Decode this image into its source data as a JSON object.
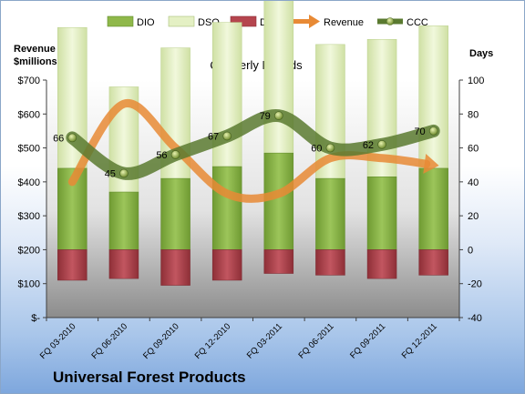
{
  "company_name": "Universal Forest Products",
  "chart_data": {
    "type": "bar",
    "title": "Quarterly Periods",
    "left_axis_label": "Revenue $millions",
    "right_axis_label": "Days",
    "categories": [
      "FQ 03-2010",
      "FQ 06-2010",
      "FQ 09-2010",
      "FQ 12-2010",
      "FQ 03-2011",
      "FQ 06-2011",
      "FQ 09-2011",
      "FQ 12-2011"
    ],
    "left_axis": {
      "min": 0,
      "max": 700,
      "step": 100,
      "tick_labels": [
        "$-",
        "$100",
        "$200",
        "$300",
        "$400",
        "$500",
        "$600",
        "$700"
      ]
    },
    "right_axis": {
      "min": -40,
      "max": 100,
      "step": 20,
      "tick_labels": [
        "-40",
        "-20",
        "0",
        "20",
        "40",
        "60",
        "80",
        "100"
      ]
    },
    "legend_position": "top",
    "series": [
      {
        "name": "DIO",
        "axis": "right",
        "kind": "stacked-bar",
        "color": "#8fb84a",
        "values": [
          48,
          34,
          42,
          49,
          57,
          42,
          43,
          48
        ]
      },
      {
        "name": "DSO",
        "axis": "right",
        "kind": "stacked-bar",
        "color": "#e4f0c4",
        "values": [
          83,
          62,
          77,
          85,
          93,
          79,
          81,
          84
        ]
      },
      {
        "name": "DPO",
        "axis": "right",
        "kind": "negative-bar",
        "color": "#b5454e",
        "values": [
          -18,
          -17,
          -21,
          -18,
          -14,
          -15,
          -17,
          -15
        ]
      },
      {
        "name": "Revenue",
        "axis": "left",
        "kind": "line",
        "color": "#e88a35",
        "values": [
          400,
          630,
          500,
          365,
          365,
          470,
          470,
          450
        ]
      },
      {
        "name": "CCC",
        "axis": "right",
        "kind": "line",
        "color": "#5a7a30",
        "values": [
          66,
          45,
          56,
          67,
          79,
          60,
          62,
          70
        ],
        "data_labels": [
          "66",
          "45",
          "56",
          "67",
          "79",
          "60",
          "62",
          "70"
        ]
      }
    ]
  }
}
